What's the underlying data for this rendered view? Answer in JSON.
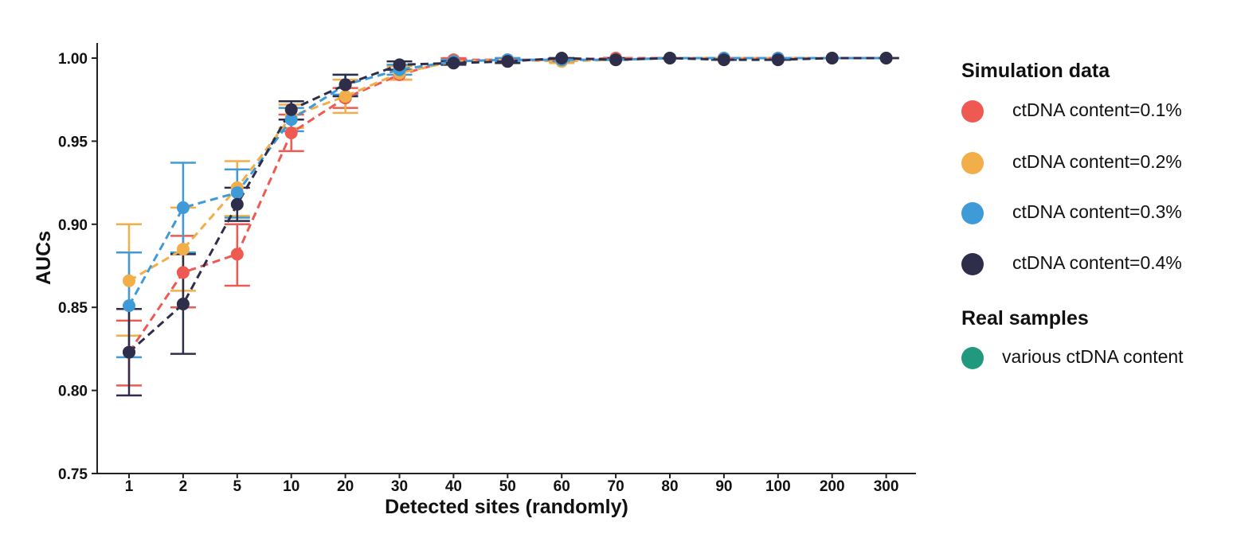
{
  "chart_data": {
    "type": "line",
    "title": "",
    "xlabel": "Detected sites (randomly)",
    "ylabel": "AUCs",
    "categories": [
      "1",
      "2",
      "5",
      "10",
      "20",
      "30",
      "40",
      "50",
      "60",
      "70",
      "80",
      "90",
      "100",
      "200",
      "300"
    ],
    "ylim": [
      0.75,
      1.0
    ],
    "yticks": [
      "0.75",
      "0.80",
      "0.85",
      "0.90",
      "0.95",
      "1.00"
    ],
    "grid": false,
    "legend_position": "right",
    "legend_groups": [
      {
        "title": "Simulation data",
        "entries": [
          {
            "label": "ctDNA content=0.1%",
            "color": "#ee5a52"
          },
          {
            "label": "ctDNA content=0.2%",
            "color": "#f2ae48"
          },
          {
            "label": "ctDNA content=0.3%",
            "color": "#3f9ad8"
          },
          {
            "label": "ctDNA content=0.4%",
            "color": "#2e2e4b"
          }
        ]
      },
      {
        "title": "Real samples",
        "entries": [
          {
            "label": "various ctDNA content",
            "color": "#21997f"
          }
        ]
      }
    ],
    "series": [
      {
        "name": "ctDNA content=0.1%",
        "color": "#ee5a52",
        "values": [
          0.823,
          0.871,
          0.882,
          0.955,
          0.976,
          0.99,
          0.999,
          0.999,
          0.999,
          1.0,
          1.0,
          1.0,
          1.0,
          1.0,
          1.0
        ],
        "err_low": [
          0.803,
          0.85,
          0.863,
          0.944,
          0.97,
          0.987,
          0.998,
          0.998,
          0.998,
          0.999,
          1.0,
          0.999,
          0.999,
          1.0,
          1.0
        ],
        "err_high": [
          0.842,
          0.893,
          0.9,
          0.966,
          0.982,
          0.993,
          1.0,
          1.0,
          1.0,
          1.0,
          1.0,
          1.0,
          1.0,
          1.0,
          1.0
        ]
      },
      {
        "name": "ctDNA content=0.2%",
        "color": "#f2ae48",
        "values": [
          0.866,
          0.885,
          0.922,
          0.965,
          0.977,
          0.991,
          0.998,
          0.999,
          0.998,
          0.999,
          1.0,
          1.0,
          1.0,
          1.0,
          1.0
        ],
        "err_low": [
          0.833,
          0.86,
          0.905,
          0.958,
          0.967,
          0.987,
          0.997,
          0.998,
          0.997,
          0.999,
          1.0,
          0.999,
          0.999,
          1.0,
          1.0
        ],
        "err_high": [
          0.9,
          0.91,
          0.938,
          0.972,
          0.987,
          0.995,
          0.999,
          1.0,
          0.999,
          1.0,
          1.0,
          1.0,
          1.0,
          1.0,
          1.0
        ]
      },
      {
        "name": "ctDNA content=0.3%",
        "color": "#3f9ad8",
        "values": [
          0.851,
          0.91,
          0.919,
          0.963,
          0.984,
          0.993,
          0.998,
          0.999,
          0.999,
          0.999,
          1.0,
          1.0,
          1.0,
          1.0,
          1.0
        ],
        "err_low": [
          0.82,
          0.883,
          0.904,
          0.956,
          0.978,
          0.99,
          0.997,
          0.998,
          0.998,
          0.999,
          1.0,
          0.999,
          0.999,
          1.0,
          1.0
        ],
        "err_high": [
          0.883,
          0.937,
          0.933,
          0.97,
          0.99,
          0.996,
          0.999,
          1.0,
          1.0,
          1.0,
          1.0,
          1.0,
          1.0,
          1.0,
          1.0
        ]
      },
      {
        "name": "ctDNA content=0.4%",
        "color": "#2e2e4b",
        "values": [
          0.823,
          0.852,
          0.912,
          0.969,
          0.984,
          0.996,
          0.997,
          0.998,
          1.0,
          0.999,
          1.0,
          0.999,
          0.999,
          1.0,
          1.0
        ],
        "err_low": [
          0.797,
          0.822,
          0.902,
          0.963,
          0.977,
          0.993,
          0.996,
          0.997,
          0.999,
          0.999,
          1.0,
          0.999,
          0.999,
          1.0,
          1.0
        ],
        "err_high": [
          0.849,
          0.882,
          0.922,
          0.974,
          0.99,
          0.998,
          0.998,
          0.999,
          1.0,
          1.0,
          1.0,
          1.0,
          1.0,
          1.0,
          1.0
        ]
      }
    ]
  }
}
